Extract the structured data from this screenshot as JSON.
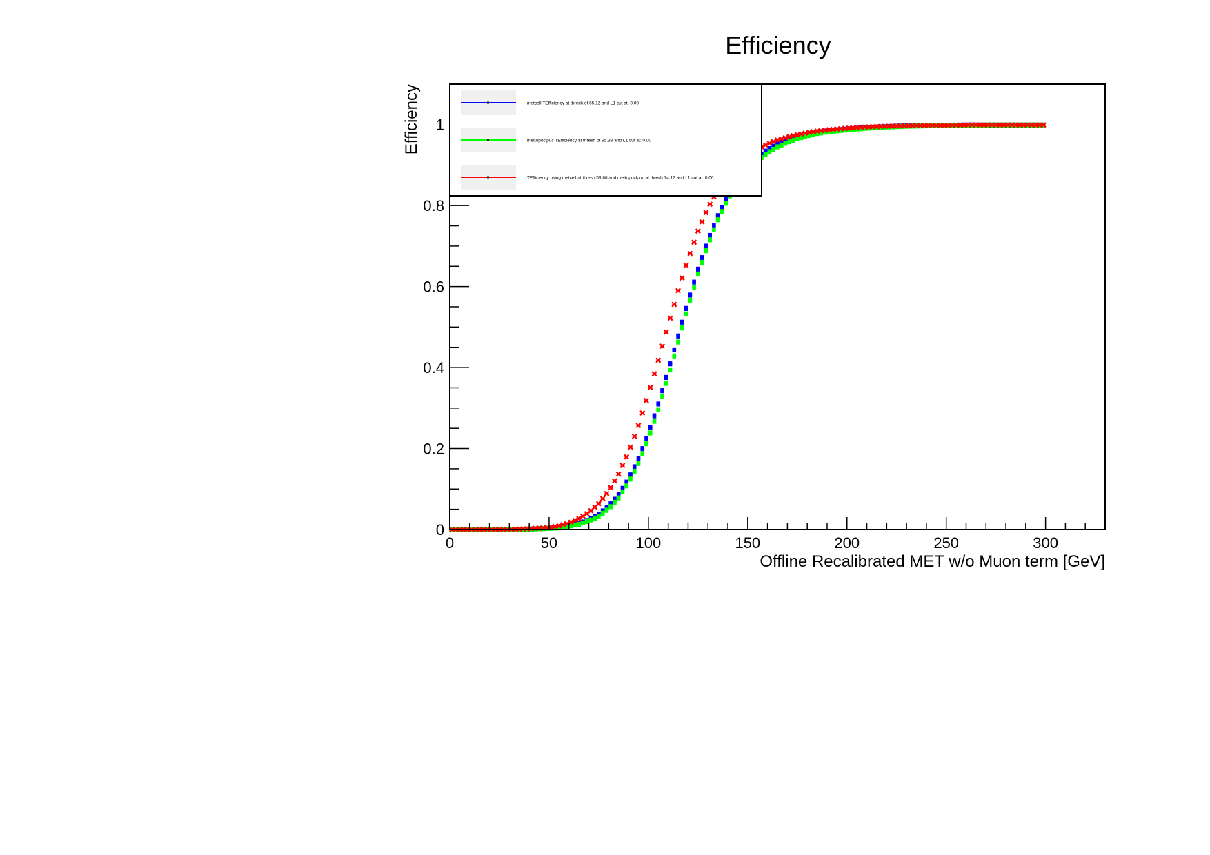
{
  "chart_data": {
    "type": "scatter",
    "title": "Efficiency",
    "xlabel": "Offline Recalibrated MET w/o Muon term [GeV]",
    "ylabel": "Efficiency",
    "xlim": [
      0,
      330
    ],
    "ylim": [
      0,
      1.1
    ],
    "x_ticks": [
      0,
      50,
      100,
      150,
      200,
      250,
      300
    ],
    "x_tick_labels": [
      "0",
      "50",
      "100",
      "150",
      "200",
      "250",
      "300"
    ],
    "y_ticks": [
      0,
      0.2,
      0.4,
      0.6,
      0.8,
      1.0
    ],
    "y_tick_labels": [
      "0",
      "0.2",
      "0.4",
      "0.6",
      "0.8",
      "1"
    ],
    "grid": false,
    "legend_position": "top-left",
    "series": [
      {
        "name": "metcell TEfficiency at thresh of  65.12 and L1 cut at: 0.00",
        "color": "#0000ff",
        "marker": "square",
        "x": [
          0,
          10,
          20,
          30,
          40,
          50,
          55,
          60,
          65,
          70,
          75,
          80,
          85,
          90,
          95,
          100,
          105,
          110,
          115,
          120,
          125,
          130,
          135,
          140,
          145,
          150,
          155,
          160,
          165,
          170,
          175,
          180,
          185,
          190,
          200,
          210,
          220,
          230,
          240,
          250,
          260,
          270,
          280,
          290,
          300
        ],
        "y": [
          0.0,
          0.0,
          0.0,
          0.0,
          0.001,
          0.003,
          0.005,
          0.009,
          0.015,
          0.024,
          0.038,
          0.058,
          0.086,
          0.125,
          0.175,
          0.237,
          0.31,
          0.392,
          0.478,
          0.563,
          0.643,
          0.714,
          0.775,
          0.826,
          0.865,
          0.896,
          0.92,
          0.938,
          0.952,
          0.962,
          0.969,
          0.976,
          0.981,
          0.985,
          0.989,
          0.993,
          0.995,
          0.997,
          0.998,
          0.998,
          0.999,
          0.999,
          0.999,
          0.999,
          0.999
        ]
      },
      {
        "name": "mettopoclpuc TEfficiency at thresh of  95.38 and L1 cut at: 0.00",
        "color": "#00ff00",
        "marker": "square",
        "x": [
          0,
          10,
          20,
          30,
          40,
          50,
          55,
          60,
          65,
          70,
          75,
          80,
          85,
          90,
          95,
          100,
          105,
          110,
          115,
          120,
          125,
          130,
          135,
          140,
          145,
          150,
          155,
          160,
          165,
          170,
          175,
          180,
          185,
          190,
          200,
          210,
          220,
          230,
          240,
          250,
          260,
          270,
          280,
          290,
          300
        ],
        "y": [
          0.0,
          0.0,
          0.0,
          0.0,
          0.001,
          0.003,
          0.004,
          0.008,
          0.013,
          0.021,
          0.033,
          0.051,
          0.078,
          0.115,
          0.163,
          0.224,
          0.296,
          0.377,
          0.463,
          0.55,
          0.631,
          0.703,
          0.765,
          0.816,
          0.856,
          0.887,
          0.911,
          0.93,
          0.945,
          0.956,
          0.965,
          0.972,
          0.978,
          0.982,
          0.987,
          0.991,
          0.994,
          0.996,
          0.997,
          0.998,
          0.998,
          0.999,
          0.999,
          0.999,
          0.999
        ]
      },
      {
        "name": "TEfficiency using metcell at thresh  53.86 and mettopoclpuc at thresh  74.12 and L1 cut at: 0.00",
        "color": "#ff0000",
        "marker": "x",
        "x": [
          0,
          10,
          20,
          30,
          40,
          50,
          55,
          60,
          65,
          70,
          75,
          80,
          85,
          90,
          95,
          100,
          105,
          110,
          115,
          120,
          125,
          130,
          135,
          140,
          145,
          150,
          155,
          160,
          165,
          170,
          175,
          180,
          185,
          190,
          200,
          210,
          220,
          230,
          240,
          250,
          260,
          270,
          280,
          290,
          300
        ],
        "y": [
          0.0,
          0.0,
          0.0,
          0.0,
          0.002,
          0.005,
          0.009,
          0.016,
          0.027,
          0.042,
          0.064,
          0.095,
          0.137,
          0.19,
          0.257,
          0.334,
          0.418,
          0.505,
          0.59,
          0.668,
          0.737,
          0.794,
          0.84,
          0.876,
          0.903,
          0.924,
          0.94,
          0.952,
          0.962,
          0.969,
          0.975,
          0.98,
          0.984,
          0.987,
          0.991,
          0.994,
          0.996,
          0.997,
          0.998,
          0.998,
          0.999,
          0.999,
          0.999,
          0.999,
          0.999
        ]
      }
    ]
  }
}
